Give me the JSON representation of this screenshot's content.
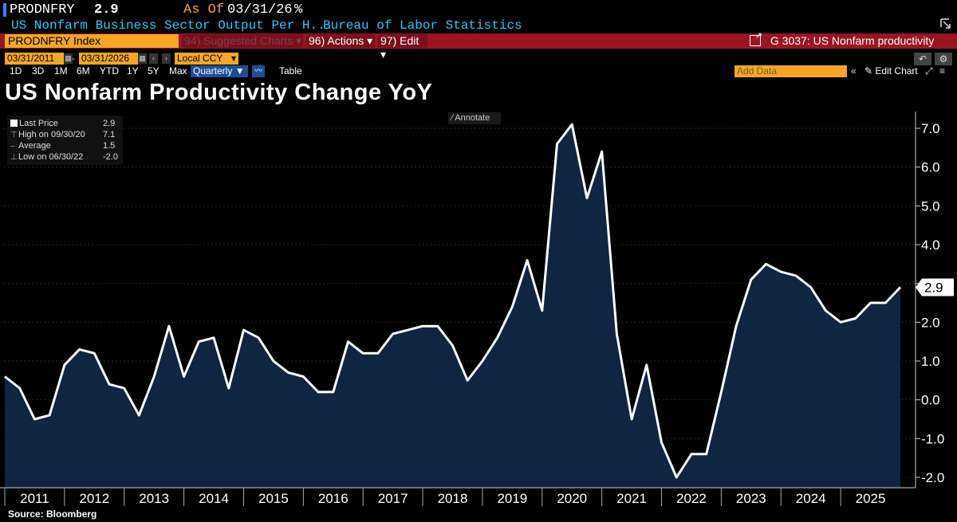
{
  "header": {
    "ticker": "PRODNFRY",
    "last_value": "2.9",
    "as_of_label": "As Of",
    "as_of_date": "03/31/26",
    "unit": "%",
    "description": "US Nonfarm Business Sector Output Per H...",
    "source": "Bureau of Labor Statistics"
  },
  "toolbar": {
    "index": "PRODNFRY Index",
    "suggested_charts": "94) Suggested Charts",
    "actions": "96) Actions",
    "edit": "97) Edit",
    "chart_id": "G 3037: US Nonfarm productivity"
  },
  "dates": {
    "start": "03/31/2011",
    "end": "03/31/2026",
    "currency": "Local CCY"
  },
  "periods": [
    "1D",
    "3D",
    "1M",
    "6M",
    "YTD",
    "1Y",
    "5Y",
    "Max"
  ],
  "frequency": "Quarterly",
  "table_label": "Table",
  "add_data_placeholder": "Add Data",
  "edit_chart_label": "Edit Chart",
  "annotate_label": "Annotate",
  "legend": {
    "last_label": "Last Price",
    "last_value": "2.9",
    "high_label": "High on 09/30/20",
    "high_value": "7.1",
    "avg_label": "Average",
    "avg_value": "1.5",
    "low_label": "Low on 06/30/22",
    "low_value": "-2.0"
  },
  "footer": {
    "source": "Source: Bloomberg"
  },
  "colors": {
    "line": "#ffffff",
    "area": "#0f2542",
    "accent": "#f5a623",
    "bar": "#9b1521",
    "cyan": "#2ec7ff"
  },
  "chart_data": {
    "type": "area",
    "title": "US Nonfarm Productivity Change YoY",
    "ylim": [
      -2.2,
      7.4
    ],
    "y_ticks": [
      7.0,
      6.0,
      5.0,
      4.0,
      3.0,
      2.0,
      1.0,
      0.0,
      -1.0,
      -2.0
    ],
    "y_tick_labels": [
      "7.0",
      "6.0",
      "5.0",
      "4.0",
      "3.0",
      "2.0",
      "1.0",
      "0.0",
      "-1.0",
      "-2.0"
    ],
    "x_labels": [
      "2011",
      "2012",
      "2013",
      "2014",
      "2015",
      "2016",
      "2017",
      "2018",
      "2019",
      "2020",
      "2021",
      "2022",
      "2023",
      "2024",
      "2025"
    ],
    "last_value_label": "2.9",
    "grid": true,
    "series": [
      {
        "values": [
          0.6,
          0.3,
          -0.5,
          -0.4,
          0.9,
          1.3,
          1.2,
          0.4,
          0.3,
          -0.4,
          0.6,
          1.9,
          0.6,
          1.5,
          1.6,
          0.3,
          1.8,
          1.6,
          1.0,
          0.7,
          0.6,
          0.2,
          0.2,
          1.5,
          1.2,
          1.2,
          1.7,
          1.8,
          1.9,
          1.9,
          1.4,
          0.5,
          1.0,
          1.6,
          2.4,
          3.6,
          2.3,
          6.6,
          7.1,
          5.2,
          6.4,
          1.7,
          -0.5,
          0.9,
          -1.1,
          -2.0,
          -1.4,
          -1.4,
          0.2,
          1.9,
          3.1,
          3.5,
          3.3,
          3.2,
          2.9,
          2.3,
          2.0,
          2.1,
          2.5,
          2.5,
          2.9
        ]
      }
    ]
  }
}
